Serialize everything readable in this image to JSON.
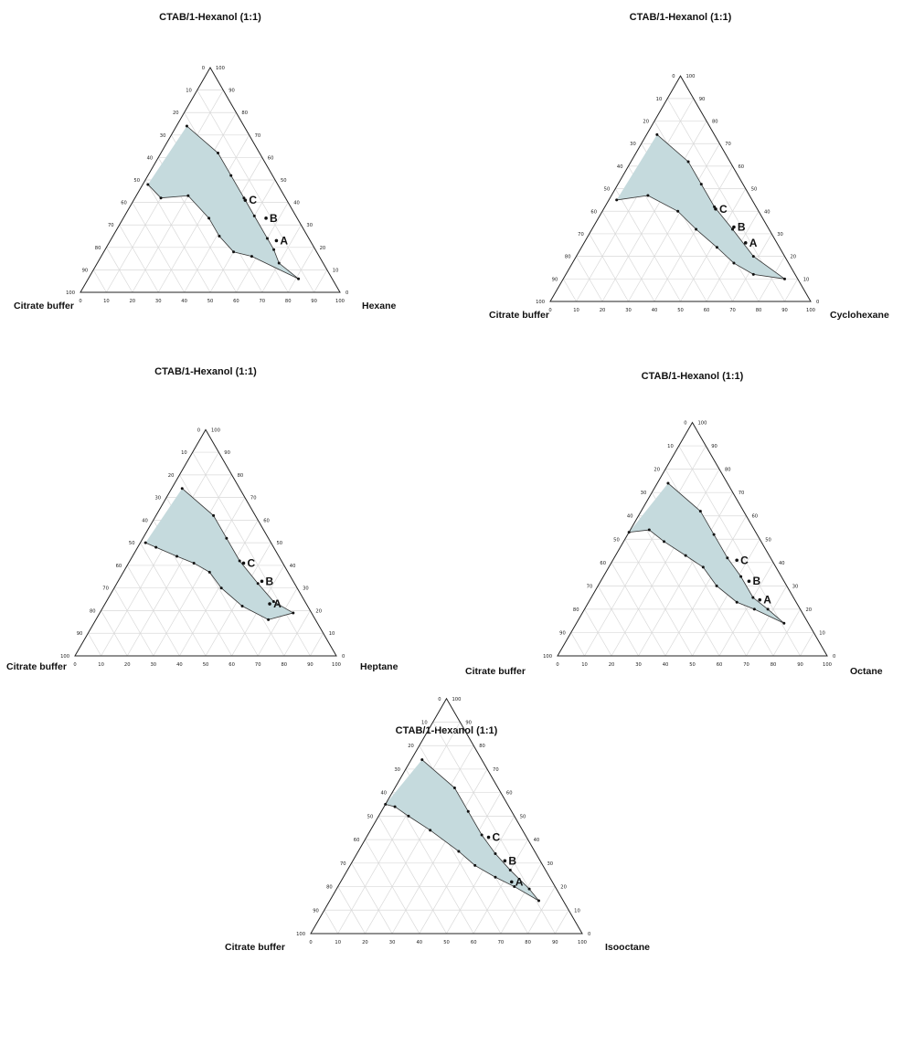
{
  "chart_data": [
    {
      "type": "ternary",
      "title": "CTAB/1-Hexanol (1:1)",
      "vertex_labels": {
        "top": "",
        "left": "Citrate buffer",
        "right": "Hexane"
      },
      "axis_ticks": [
        "0",
        "10",
        "20",
        "30",
        "40",
        "50",
        "60",
        "70",
        "80",
        "90",
        "100"
      ],
      "region_fill": "#c5dadd",
      "region_boundary": [
        {
          "s": 74,
          "o": 4
        },
        {
          "s": 62,
          "o": 22
        },
        {
          "s": 52,
          "o": 32
        },
        {
          "s": 42,
          "o": 42
        },
        {
          "s": 34,
          "o": 50
        },
        {
          "s": 24,
          "o": 60
        },
        {
          "s": 19,
          "o": 65
        },
        {
          "s": 13,
          "o": 70
        },
        {
          "s": 6,
          "o": 81
        },
        {
          "s": 16,
          "o": 58
        },
        {
          "s": 18,
          "o": 50
        },
        {
          "s": 25,
          "o": 41
        },
        {
          "s": 33,
          "o": 33
        },
        {
          "s": 43,
          "o": 20
        },
        {
          "s": 42,
          "o": 10
        },
        {
          "s": 48,
          "o": 2
        }
      ],
      "points": [
        {
          "label": "A",
          "s": 23,
          "o": 64
        },
        {
          "label": "B",
          "s": 33,
          "o": 55
        },
        {
          "label": "C",
          "s": 41,
          "o": 43
        }
      ]
    },
    {
      "type": "ternary",
      "title": "CTAB/1-Hexanol (1:1)",
      "vertex_labels": {
        "top": "",
        "left": "Citrate buffer",
        "right": "Cyclohexane"
      },
      "axis_ticks": [
        "0",
        "10",
        "20",
        "30",
        "40",
        "50",
        "60",
        "70",
        "80",
        "90",
        "100"
      ],
      "region_fill": "#c5dadd",
      "region_boundary": [
        {
          "s": 74,
          "o": 4
        },
        {
          "s": 62,
          "o": 22
        },
        {
          "s": 52,
          "o": 32
        },
        {
          "s": 42,
          "o": 42
        },
        {
          "s": 32,
          "o": 54
        },
        {
          "s": 20,
          "o": 68
        },
        {
          "s": 10,
          "o": 85
        },
        {
          "s": 12,
          "o": 72
        },
        {
          "s": 17,
          "o": 62
        },
        {
          "s": 24,
          "o": 52
        },
        {
          "s": 32,
          "o": 40
        },
        {
          "s": 40,
          "o": 29
        },
        {
          "s": 47,
          "o": 14
        },
        {
          "s": 45,
          "o": 3
        }
      ],
      "points": [
        {
          "label": "A",
          "s": 26,
          "o": 62
        },
        {
          "label": "B",
          "s": 33,
          "o": 54
        },
        {
          "label": "C",
          "s": 41,
          "o": 43
        }
      ]
    },
    {
      "type": "ternary",
      "title": "CTAB/1-Hexanol (1:1)",
      "vertex_labels": {
        "top": "",
        "left": "Citrate buffer",
        "right": "Heptane"
      },
      "axis_ticks": [
        "0",
        "10",
        "20",
        "30",
        "40",
        "50",
        "60",
        "70",
        "80",
        "90",
        "100"
      ],
      "region_fill": "#c5dadd",
      "region_boundary": [
        {
          "s": 74,
          "o": 4
        },
        {
          "s": 62,
          "o": 22
        },
        {
          "s": 52,
          "o": 32
        },
        {
          "s": 42,
          "o": 42
        },
        {
          "s": 32,
          "o": 54
        },
        {
          "s": 24,
          "o": 64
        },
        {
          "s": 19,
          "o": 74
        },
        {
          "s": 16,
          "o": 66
        },
        {
          "s": 22,
          "o": 53
        },
        {
          "s": 30,
          "o": 41
        },
        {
          "s": 37,
          "o": 33
        },
        {
          "s": 41,
          "o": 25
        },
        {
          "s": 44,
          "o": 17
        },
        {
          "s": 48,
          "o": 7
        },
        {
          "s": 50,
          "o": 2
        }
      ],
      "points": [
        {
          "label": "A",
          "s": 23,
          "o": 63
        },
        {
          "label": "B",
          "s": 33,
          "o": 55
        },
        {
          "label": "C",
          "s": 41,
          "o": 44
        }
      ]
    },
    {
      "type": "ternary",
      "title": "CTAB/1-Hexanol (1:1)",
      "vertex_labels": {
        "top": "",
        "left": "Citrate buffer",
        "right": "Octane"
      },
      "axis_ticks": [
        "0",
        "10",
        "20",
        "30",
        "40",
        "50",
        "60",
        "70",
        "80",
        "90",
        "100"
      ],
      "region_fill": "#c5dadd",
      "region_boundary": [
        {
          "s": 74,
          "o": 4
        },
        {
          "s": 62,
          "o": 22
        },
        {
          "s": 52,
          "o": 32
        },
        {
          "s": 42,
          "o": 42
        },
        {
          "s": 34,
          "o": 51
        },
        {
          "s": 25,
          "o": 60
        },
        {
          "s": 20,
          "o": 68
        },
        {
          "s": 14,
          "o": 77
        },
        {
          "s": 20,
          "o": 63
        },
        {
          "s": 23,
          "o": 55
        },
        {
          "s": 30,
          "o": 44
        },
        {
          "s": 38,
          "o": 35
        },
        {
          "s": 43,
          "o": 26
        },
        {
          "s": 49,
          "o": 15
        },
        {
          "s": 54,
          "o": 7
        },
        {
          "s": 53,
          "o": 0
        }
      ],
      "points": [
        {
          "label": "A",
          "s": 24,
          "o": 63
        },
        {
          "label": "B",
          "s": 32,
          "o": 55
        },
        {
          "label": "C",
          "s": 41,
          "o": 46
        }
      ]
    },
    {
      "type": "ternary",
      "title": "CTAB/1-Hexanol (1:1)",
      "vertex_labels": {
        "top": "",
        "left": "Citrate buffer",
        "right": "Isooctane"
      },
      "axis_ticks": [
        "0",
        "10",
        "20",
        "30",
        "40",
        "50",
        "60",
        "70",
        "80",
        "90",
        "100"
      ],
      "region_fill": "#c5dadd",
      "region_boundary": [
        {
          "s": 74,
          "o": 4
        },
        {
          "s": 62,
          "o": 22
        },
        {
          "s": 52,
          "o": 32
        },
        {
          "s": 42,
          "o": 42
        },
        {
          "s": 34,
          "o": 51
        },
        {
          "s": 27,
          "o": 60
        },
        {
          "s": 19,
          "o": 71
        },
        {
          "s": 14,
          "o": 77
        },
        {
          "s": 20,
          "o": 65
        },
        {
          "s": 24,
          "o": 56
        },
        {
          "s": 29,
          "o": 46
        },
        {
          "s": 35,
          "o": 37
        },
        {
          "s": 44,
          "o": 22
        },
        {
          "s": 50,
          "o": 11
        },
        {
          "s": 54,
          "o": 4
        },
        {
          "s": 55,
          "o": 0
        }
      ],
      "points": [
        {
          "label": "A",
          "s": 22,
          "o": 63
        },
        {
          "label": "B",
          "s": 31,
          "o": 56
        },
        {
          "label": "C",
          "s": 41,
          "o": 45
        }
      ]
    }
  ]
}
